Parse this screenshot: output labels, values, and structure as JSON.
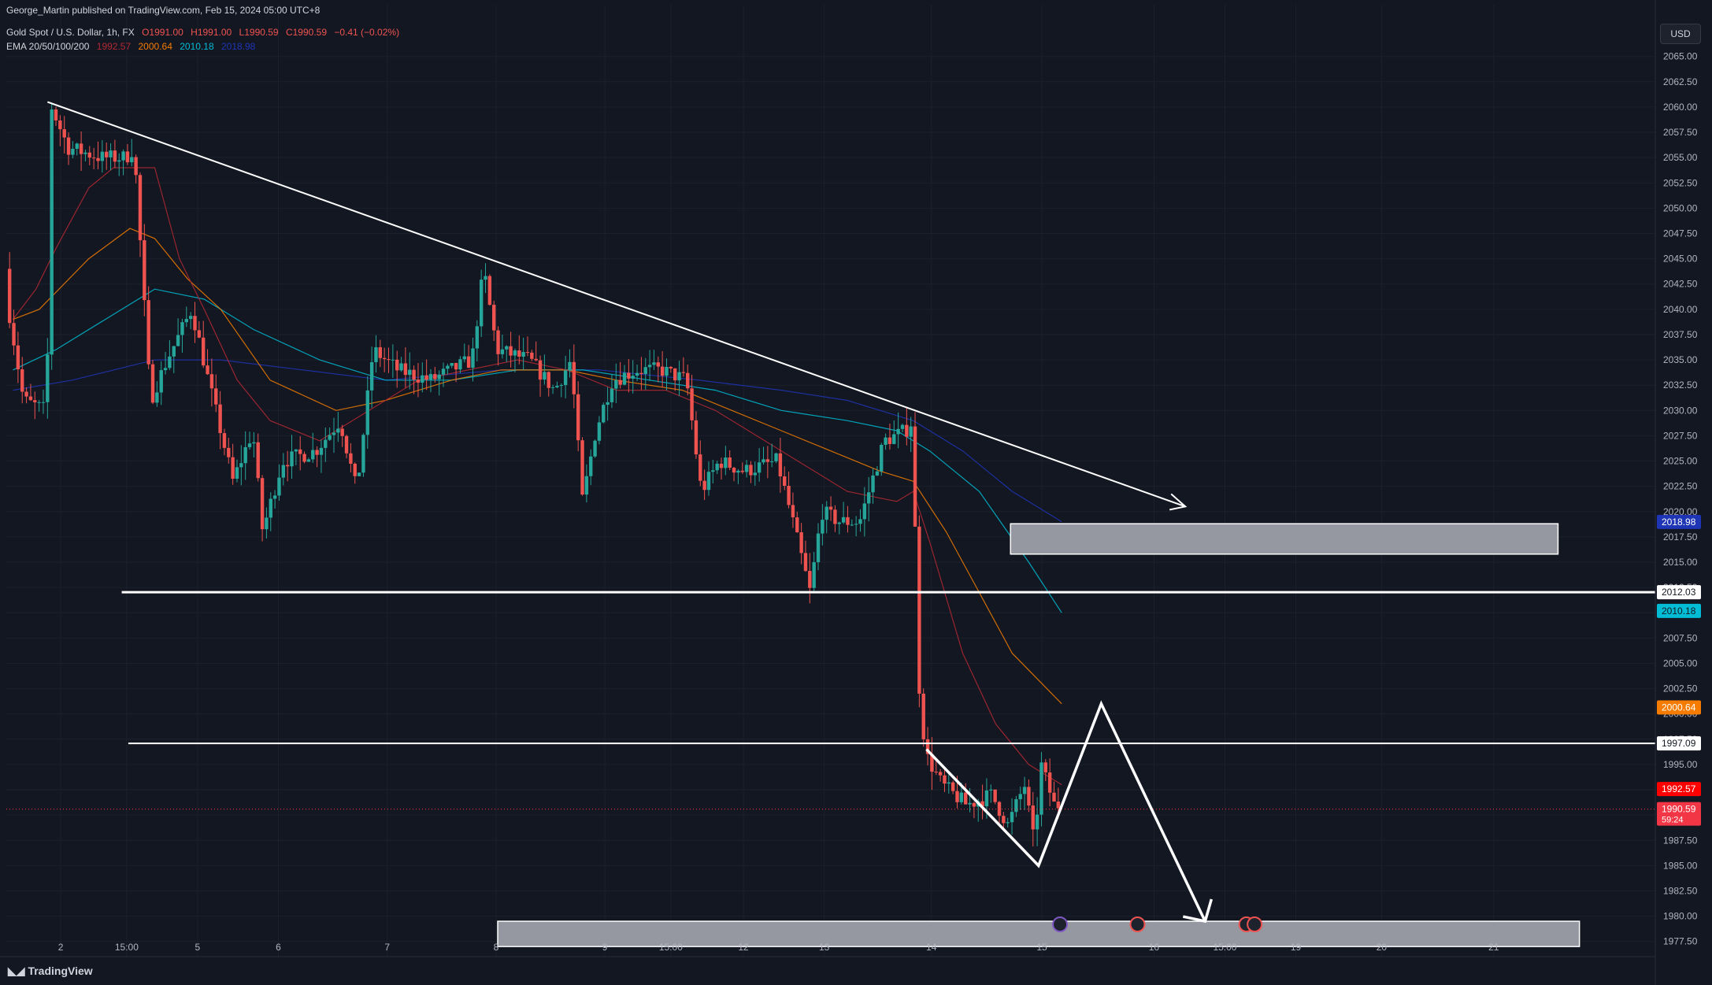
{
  "header": {
    "publisher": "George_Martin published on TradingView.com, Feb 15, 2024 05:00 UTC+8",
    "symbol": "Gold Spot / U.S. Dollar, 1h, FX",
    "open": "O1991.00",
    "high": "H1991.00",
    "low": "L1990.59",
    "close": "C1990.59",
    "change": "−0.41 (−0.02%)",
    "ema_label": "EMA 20/50/100/200",
    "ema20": "1992.57",
    "ema50": "2000.64",
    "ema100": "2010.18",
    "ema200": "2018.98"
  },
  "currency_button": "USD",
  "brand": "TradingView",
  "colors": {
    "up": "#26a69a",
    "down": "#ef5350",
    "ema20": "#b22833",
    "ema50": "#f57c00",
    "ema100": "#00bcd4",
    "ema200": "#1e35b5",
    "background": "#131722"
  },
  "chart_data": {
    "type": "candlestick",
    "symbol": "XAUUSD",
    "timeframe": "1h",
    "ylim": [
      1976,
      2067
    ],
    "y_ticks": [
      1977.5,
      1980,
      1982.5,
      1985,
      1987.5,
      1990,
      1992.5,
      1995,
      1997.5,
      2000,
      2002.5,
      2005,
      2007.5,
      2010,
      2012.5,
      2015,
      2017.5,
      2020,
      2022.5,
      2025,
      2027.5,
      2030,
      2032.5,
      2035,
      2037.5,
      2040,
      2042.5,
      2045,
      2047.5,
      2050,
      2052.5,
      2055,
      2057.5,
      2060,
      2062.5,
      2065
    ],
    "x_ticks": [
      {
        "label": "2",
        "pos": 0.033
      },
      {
        "label": "15:00",
        "pos": 0.073
      },
      {
        "label": "5",
        "pos": 0.116
      },
      {
        "label": "6",
        "pos": 0.165
      },
      {
        "label": "7",
        "pos": 0.231
      },
      {
        "label": "8",
        "pos": 0.297
      },
      {
        "label": "9",
        "pos": 0.363
      },
      {
        "label": "15:00",
        "pos": 0.403
      },
      {
        "label": "12",
        "pos": 0.447
      },
      {
        "label": "13",
        "pos": 0.496
      },
      {
        "label": "14",
        "pos": 0.561
      },
      {
        "label": "15",
        "pos": 0.628
      },
      {
        "label": "16",
        "pos": 0.696
      },
      {
        "label": "15:00",
        "pos": 0.739
      },
      {
        "label": "19",
        "pos": 0.782
      },
      {
        "label": "20",
        "pos": 0.834
      },
      {
        "label": "21",
        "pos": 0.902
      }
    ],
    "price_anchors": [
      [
        0,
        2044
      ],
      [
        0.013,
        2031
      ],
      [
        0.027,
        2030
      ],
      [
        0.03,
        2060
      ],
      [
        0.04,
        2056
      ],
      [
        0.06,
        2055
      ],
      [
        0.075,
        2055
      ],
      [
        0.08,
        2056
      ],
      [
        0.09,
        2031
      ],
      [
        0.1,
        2035
      ],
      [
        0.115,
        2040
      ],
      [
        0.125,
        2033
      ],
      [
        0.14,
        2023
      ],
      [
        0.152,
        2028
      ],
      [
        0.158,
        2018
      ],
      [
        0.17,
        2025
      ],
      [
        0.19,
        2026
      ],
      [
        0.205,
        2029
      ],
      [
        0.215,
        2022
      ],
      [
        0.225,
        2036
      ],
      [
        0.24,
        2034
      ],
      [
        0.26,
        2033
      ],
      [
        0.285,
        2035
      ],
      [
        0.292,
        2044
      ],
      [
        0.3,
        2036
      ],
      [
        0.32,
        2035
      ],
      [
        0.335,
        2032
      ],
      [
        0.345,
        2035
      ],
      [
        0.352,
        2021
      ],
      [
        0.36,
        2028
      ],
      [
        0.37,
        2033
      ],
      [
        0.385,
        2034
      ],
      [
        0.4,
        2034
      ],
      [
        0.415,
        2033
      ],
      [
        0.424,
        2022
      ],
      [
        0.435,
        2025
      ],
      [
        0.45,
        2024
      ],
      [
        0.47,
        2025
      ],
      [
        0.478,
        2020
      ],
      [
        0.49,
        2012
      ],
      [
        0.497,
        2020
      ],
      [
        0.508,
        2019
      ],
      [
        0.52,
        2019
      ],
      [
        0.535,
        2027
      ],
      [
        0.548,
        2028
      ],
      [
        0.552,
        2029
      ],
      [
        0.556,
        2003
      ],
      [
        0.56,
        1996
      ],
      [
        0.57,
        1993
      ],
      [
        0.585,
        1991
      ],
      [
        0.6,
        1992
      ],
      [
        0.61,
        1989
      ],
      [
        0.62,
        1993
      ],
      [
        0.626,
        1987
      ],
      [
        0.63,
        1995
      ],
      [
        0.638,
        1991
      ]
    ],
    "ema20": [
      [
        0.004,
        2039
      ],
      [
        0.018,
        2042
      ],
      [
        0.03,
        2046
      ],
      [
        0.05,
        2052
      ],
      [
        0.065,
        2054
      ],
      [
        0.09,
        2054
      ],
      [
        0.105,
        2045
      ],
      [
        0.12,
        2040
      ],
      [
        0.14,
        2033
      ],
      [
        0.16,
        2029
      ],
      [
        0.19,
        2027
      ],
      [
        0.22,
        2030
      ],
      [
        0.25,
        2033
      ],
      [
        0.28,
        2034
      ],
      [
        0.31,
        2035
      ],
      [
        0.34,
        2034
      ],
      [
        0.37,
        2032
      ],
      [
        0.4,
        2032
      ],
      [
        0.43,
        2030
      ],
      [
        0.46,
        2027
      ],
      [
        0.49,
        2024
      ],
      [
        0.51,
        2022
      ],
      [
        0.54,
        2021
      ],
      [
        0.55,
        2022
      ],
      [
        0.56,
        2017
      ],
      [
        0.58,
        2006
      ],
      [
        0.6,
        1999
      ],
      [
        0.62,
        1995
      ],
      [
        0.64,
        1993
      ]
    ],
    "ema50": [
      [
        0.004,
        2039
      ],
      [
        0.02,
        2040
      ],
      [
        0.05,
        2045
      ],
      [
        0.075,
        2048
      ],
      [
        0.09,
        2047
      ],
      [
        0.11,
        2043
      ],
      [
        0.13,
        2040
      ],
      [
        0.16,
        2033
      ],
      [
        0.2,
        2030
      ],
      [
        0.23,
        2031
      ],
      [
        0.27,
        2033
      ],
      [
        0.3,
        2034
      ],
      [
        0.34,
        2034
      ],
      [
        0.37,
        2033
      ],
      [
        0.41,
        2032
      ],
      [
        0.44,
        2030
      ],
      [
        0.47,
        2028
      ],
      [
        0.5,
        2026
      ],
      [
        0.53,
        2024
      ],
      [
        0.55,
        2023
      ],
      [
        0.57,
        2018
      ],
      [
        0.59,
        2012
      ],
      [
        0.61,
        2006
      ],
      [
        0.64,
        2001
      ]
    ],
    "ema100": [
      [
        0.004,
        2034
      ],
      [
        0.03,
        2036
      ],
      [
        0.06,
        2039
      ],
      [
        0.09,
        2042
      ],
      [
        0.12,
        2041
      ],
      [
        0.15,
        2038
      ],
      [
        0.19,
        2035
      ],
      [
        0.23,
        2033
      ],
      [
        0.27,
        2033
      ],
      [
        0.31,
        2034
      ],
      [
        0.35,
        2034
      ],
      [
        0.39,
        2033
      ],
      [
        0.43,
        2032
      ],
      [
        0.47,
        2030
      ],
      [
        0.51,
        2029
      ],
      [
        0.54,
        2028
      ],
      [
        0.56,
        2026
      ],
      [
        0.59,
        2022
      ],
      [
        0.62,
        2015
      ],
      [
        0.64,
        2010
      ]
    ],
    "ema200": [
      [
        0.004,
        2032
      ],
      [
        0.04,
        2033
      ],
      [
        0.09,
        2035
      ],
      [
        0.13,
        2035
      ],
      [
        0.18,
        2034
      ],
      [
        0.23,
        2033
      ],
      [
        0.3,
        2034
      ],
      [
        0.36,
        2034
      ],
      [
        0.42,
        2033
      ],
      [
        0.47,
        2032
      ],
      [
        0.51,
        2031
      ],
      [
        0.55,
        2029
      ],
      [
        0.58,
        2026
      ],
      [
        0.61,
        2022
      ],
      [
        0.64,
        2019
      ]
    ],
    "price_labels": [
      {
        "value": 2018.98,
        "text": "2018.98",
        "color": "#1e35b5"
      },
      {
        "value": 2012.03,
        "text": "2012.03",
        "color": "#ffffff"
      },
      {
        "value": 2010.18,
        "text": "2010.18",
        "color": "#00bcd4"
      },
      {
        "value": 2000.64,
        "text": "2000.64",
        "color": "#f57c00"
      },
      {
        "value": 1997.09,
        "text": "1997.09",
        "color": "#ffffff"
      },
      {
        "value": 1992.57,
        "text": "1992.57",
        "color": "#ff0000"
      },
      {
        "value": 1990.59,
        "text": "1990.59",
        "sub": "59:24",
        "color": "#f23645"
      }
    ],
    "drawings": {
      "trendline": [
        [
          0.025,
          2060.5
        ],
        [
          0.715,
          2020.5
        ]
      ],
      "hlines": [
        {
          "value": 2012.03,
          "from": 0.07
        },
        {
          "value": 1997.09,
          "from": 0.074
        }
      ],
      "zones": [
        {
          "from": 0.609,
          "to": 0.941,
          "top": 2018.8,
          "bottom": 2015.8
        },
        {
          "from": 0.298,
          "to": 0.954,
          "top": 1979.5,
          "bottom": 1977.0
        }
      ],
      "projection": [
        [
          0.558,
          1996.5
        ],
        [
          0.626,
          1985
        ],
        [
          0.664,
          2001
        ],
        [
          0.727,
          1979.5
        ]
      ]
    }
  }
}
